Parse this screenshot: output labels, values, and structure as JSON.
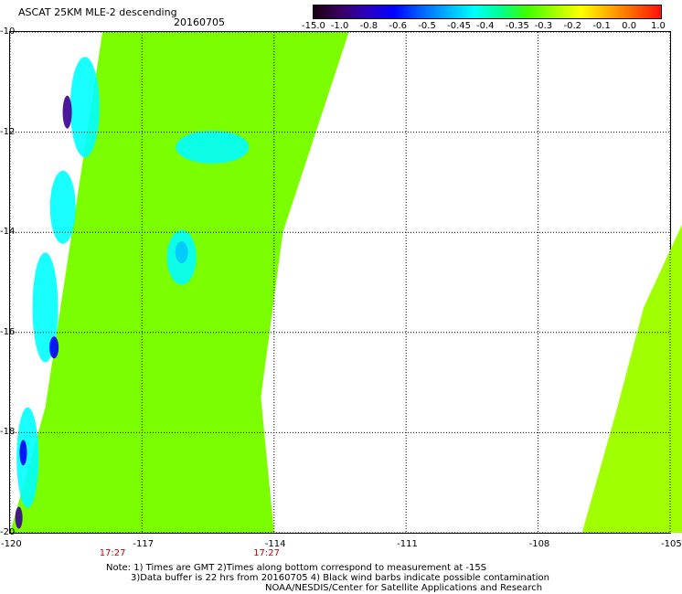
{
  "header": {
    "title": "ASCAT 25KM MLE-2 descending",
    "date": "20160705"
  },
  "colorbar": {
    "labels": [
      "-15.0",
      "-1.0",
      "-0.8",
      "-0.6",
      "-0.5",
      "-0.45",
      "-0.4",
      "-0.35",
      "-0.3",
      "-0.2",
      "-0.1",
      "0.0",
      "1.0"
    ]
  },
  "map": {
    "lat_ticks": [
      "-10",
      "-12",
      "-14",
      "-16",
      "-18",
      "-20"
    ],
    "lon_ticks": [
      "-120",
      "-117",
      "-114",
      "-111",
      "-108",
      "-105"
    ],
    "lat_range": [
      -10,
      -20
    ],
    "lon_range": [
      -120,
      -105
    ],
    "swaths": [
      {
        "name": "left-swath",
        "time_label": "17:27",
        "time_lon": -117.7
      },
      {
        "name": "right-swath",
        "time_label": "17:27",
        "time_lon": -114.2
      }
    ],
    "colors": {
      "green": "#7bff00",
      "light_green": "#a0ff00",
      "cyan": "#00ffff",
      "light_blue": "#00c8ff",
      "blue": "#0000ff",
      "navy": "#3a0090"
    }
  },
  "notes": {
    "line1": "Note: 1) Times are GMT 2)Times along bottom correspond to measurement at -15S",
    "line2": "3)Data buffer is 22 hrs from 20160705 4) Black wind barbs indicate possible contamination",
    "line3": "NOAA/NESDIS/Center for Satellite Applications and Research"
  }
}
